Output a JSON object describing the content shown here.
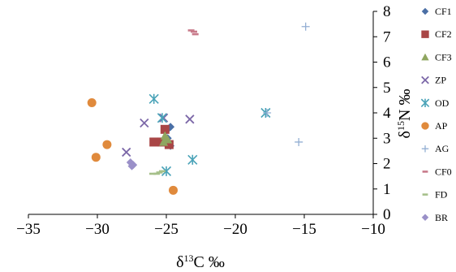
{
  "chart_data": {
    "type": "scatter",
    "xlabel": "δ13C ‰",
    "ylabel": "δ15N ‰",
    "xlim": [
      -35,
      -10
    ],
    "ylim": [
      0,
      8
    ],
    "x_ticks": [
      "−35",
      "−30",
      "−25",
      "−20",
      "−15",
      "−10"
    ],
    "y_ticks": [
      "0",
      "1",
      "2",
      "3",
      "4",
      "5",
      "6",
      "7",
      "8"
    ],
    "grid": false,
    "legend_position": "right",
    "series": [
      {
        "name": "CF1",
        "marker": "diamond",
        "color": "#4a6fa5",
        "points": [
          [
            -25.0,
            3.3
          ],
          [
            -24.7,
            3.45
          ],
          [
            -24.9,
            3.0
          ],
          [
            -24.7,
            2.7
          ]
        ]
      },
      {
        "name": "CF2",
        "marker": "square",
        "color": "#a94646",
        "points": [
          [
            -25.9,
            2.85
          ],
          [
            -25.1,
            3.35
          ],
          [
            -24.8,
            2.75
          ],
          [
            -25.3,
            2.85
          ]
        ]
      },
      {
        "name": "CF3",
        "marker": "triangle",
        "color": "#8fa660",
        "points": [
          [
            -25.1,
            3.1
          ],
          [
            -24.9,
            2.95
          ],
          [
            -25.2,
            2.85
          ],
          [
            -25.0,
            3.0
          ]
        ]
      },
      {
        "name": "ZP",
        "marker": "x",
        "color": "#7c68a8",
        "points": [
          [
            -26.6,
            3.6
          ],
          [
            -23.3,
            3.75
          ],
          [
            -27.9,
            2.45
          ],
          [
            -25.2,
            3.8
          ]
        ]
      },
      {
        "name": "OD",
        "marker": "asterisk",
        "color": "#4aa3b8",
        "points": [
          [
            -25.9,
            4.55
          ],
          [
            -25.3,
            3.8
          ],
          [
            -17.8,
            4.0
          ],
          [
            -25.0,
            1.7
          ],
          [
            -23.1,
            2.15
          ]
        ]
      },
      {
        "name": "AP",
        "marker": "circle",
        "color": "#e08a3c",
        "points": [
          [
            -30.4,
            4.4
          ],
          [
            -29.3,
            2.75
          ],
          [
            -30.1,
            2.25
          ],
          [
            -24.5,
            0.95
          ]
        ]
      },
      {
        "name": "AG",
        "marker": "plus",
        "color": "#93afd3",
        "points": [
          [
            -14.9,
            7.4
          ],
          [
            -15.4,
            2.85
          ],
          [
            -17.7,
            4.0
          ]
        ]
      },
      {
        "name": "CF0",
        "marker": "dash",
        "color": "#c87a8a",
        "points": [
          [
            -23.2,
            7.25
          ],
          [
            -22.9,
            7.1
          ],
          [
            -23.0,
            7.2
          ]
        ]
      },
      {
        "name": "FD",
        "marker": "dash",
        "color": "#a6c08a",
        "points": [
          [
            -26.0,
            1.6
          ],
          [
            -25.7,
            1.6
          ],
          [
            -25.5,
            1.65
          ],
          [
            -25.3,
            1.7
          ]
        ]
      },
      {
        "name": "BR",
        "marker": "diamond",
        "color": "#9a90c8",
        "points": [
          [
            -27.6,
            2.05
          ],
          [
            -27.5,
            1.9
          ],
          [
            -27.4,
            1.95
          ]
        ]
      }
    ]
  }
}
